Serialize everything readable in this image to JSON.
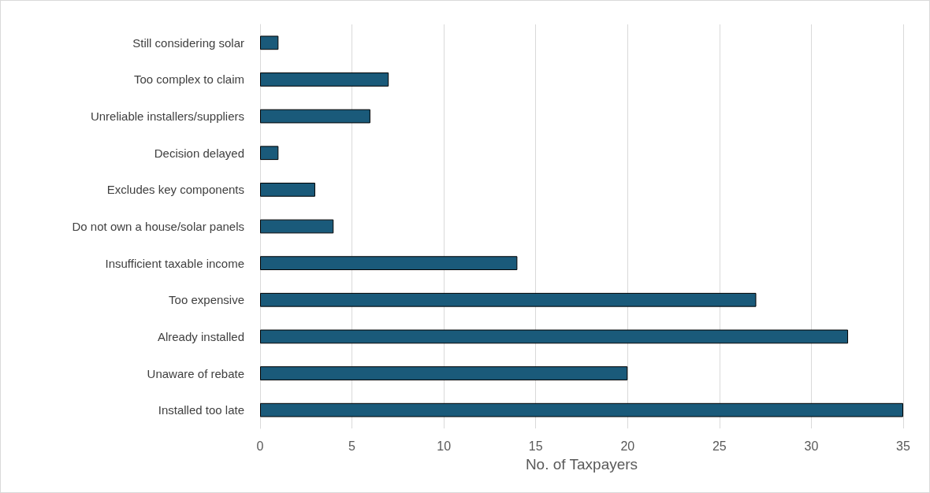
{
  "chart_data": {
    "type": "bar",
    "orientation": "horizontal",
    "xlabel": "No. of Taxpayers",
    "categories": [
      "Still considering solar",
      "Too complex to claim",
      "Unreliable installers/suppliers",
      "Decision delayed",
      "Excludes key components",
      "Do not own a house/solar panels",
      "Insufficient taxable income",
      "Too expensive",
      "Already installed",
      "Unaware of rebate",
      "Installed too late"
    ],
    "values": [
      1,
      7,
      6,
      1,
      3,
      4,
      14,
      27,
      32,
      20,
      35
    ],
    "color": "#1a5a7a",
    "xlim": [
      0,
      35
    ],
    "xticks": [
      0,
      5,
      10,
      15,
      20,
      25,
      30,
      35
    ],
    "grid": "x"
  }
}
